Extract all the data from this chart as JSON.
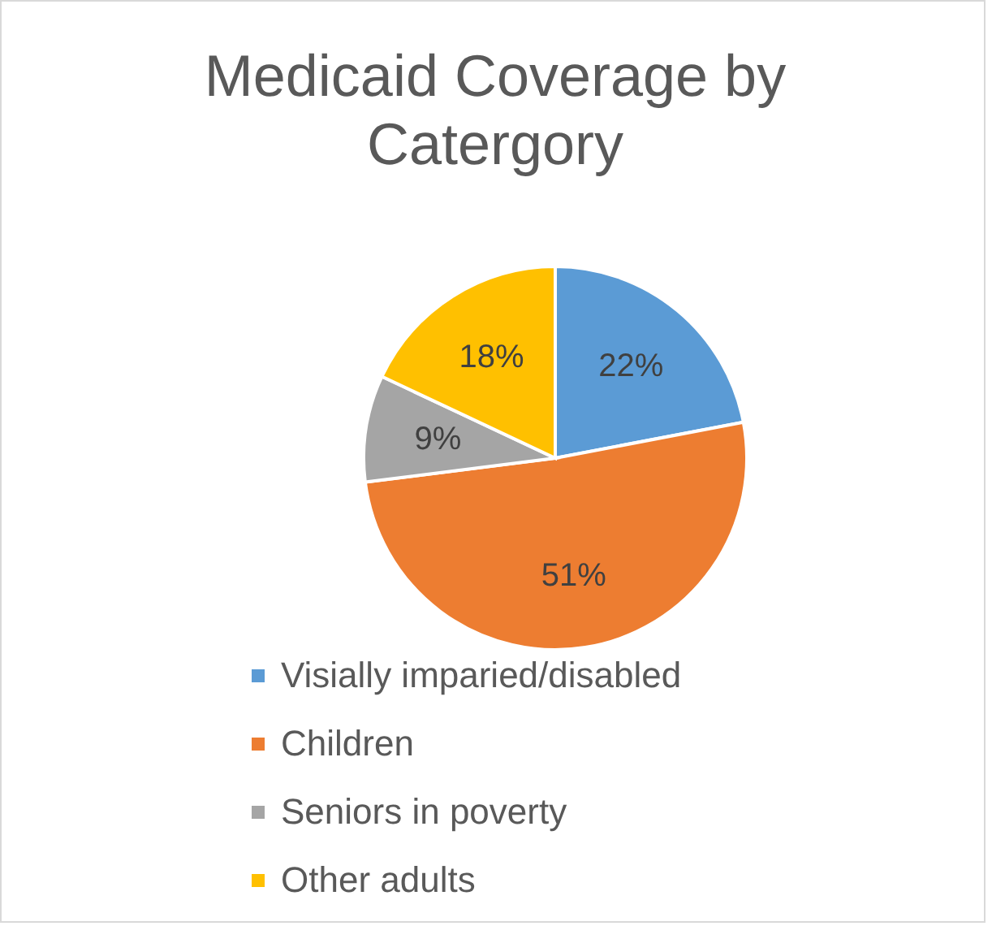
{
  "chart_data": {
    "type": "pie",
    "title": "Medicaid Coverage by Catergory",
    "categories": [
      "Visially imparied/disabled",
      "Children",
      "Seniors in poverty",
      "Other adults"
    ],
    "values": [
      22,
      51,
      9,
      18
    ],
    "colors": [
      "#5b9bd5",
      "#ed7d31",
      "#a5a5a5",
      "#ffc000"
    ],
    "value_labels": [
      "22%",
      "51%",
      "9%",
      "18%"
    ],
    "legend": "bottom"
  }
}
